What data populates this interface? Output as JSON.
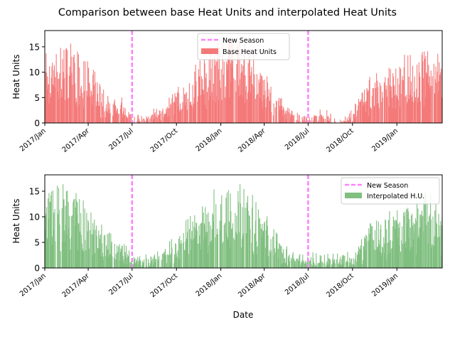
{
  "figure": {
    "title": "Comparison between base Heat Units and interpolated Heat Units",
    "xlabel": "Date"
  },
  "legend_labels": {
    "season": "New Season",
    "base": "Base Heat Units",
    "interp": "Interpolated H.U."
  },
  "colors": {
    "base": "#f47a7a",
    "interp": "#80bf80",
    "season": "#ff80ff"
  },
  "chart_data": [
    {
      "type": "bar",
      "title": "",
      "xlabel": "",
      "ylabel": "Heat Units",
      "ylim": [
        0,
        18.2
      ],
      "y_ticks": [
        0,
        5,
        10,
        15
      ],
      "x_range": [
        "2017-01-01",
        "2019-04-05"
      ],
      "x_ticks": [
        "2017/Jan",
        "2017/Apr",
        "2017/Jul",
        "2017/Oct",
        "2018/Jan",
        "2018/Apr",
        "2018/Jul",
        "2018/Oct",
        "2019/Jan"
      ],
      "season_markers": [
        "2017-07-01",
        "2018-07-01"
      ],
      "legend_position": "upper center",
      "series": [
        {
          "name": "Base Heat Units",
          "profile_dates": [
            "2017-01-01",
            "2017-02-01",
            "2017-03-01",
            "2017-04-01",
            "2017-05-01",
            "2017-05-20",
            "2017-06-10",
            "2017-07-01",
            "2017-08-01",
            "2017-09-01",
            "2017-10-01",
            "2017-11-01",
            "2017-12-01",
            "2018-01-01",
            "2018-02-01",
            "2018-03-01",
            "2018-04-01",
            "2018-05-01",
            "2018-06-01",
            "2018-07-01",
            "2018-08-01",
            "2018-09-01",
            "2018-10-01",
            "2018-11-01",
            "2018-12-01",
            "2019-01-01",
            "2019-02-01",
            "2019-03-01",
            "2019-04-05"
          ],
          "profile_values": [
            10,
            11,
            10,
            8,
            5,
            4,
            3,
            0.5,
            1,
            2,
            4,
            7,
            9,
            11,
            12,
            10,
            7,
            4,
            1.5,
            0.3,
            1.5,
            0,
            1.5,
            6,
            7,
            8,
            9,
            10,
            8
          ]
        }
      ]
    },
    {
      "type": "bar",
      "title": "",
      "xlabel": "Date",
      "ylabel": "Heat Units",
      "ylim": [
        0,
        18.2
      ],
      "y_ticks": [
        0,
        5,
        10,
        15
      ],
      "x_range": [
        "2017-01-01",
        "2019-04-05"
      ],
      "x_ticks": [
        "2017/Jan",
        "2017/Apr",
        "2017/Jul",
        "2017/Oct",
        "2018/Jan",
        "2018/Apr",
        "2018/Jul",
        "2018/Oct",
        "2019/Jan"
      ],
      "season_markers": [
        "2017-07-01",
        "2018-07-01"
      ],
      "legend_position": "upper right",
      "series": [
        {
          "name": "Interpolated H.U.",
          "profile_dates": [
            "2017-01-01",
            "2017-02-01",
            "2017-03-01",
            "2017-04-01",
            "2017-05-01",
            "2017-05-20",
            "2017-06-10",
            "2017-06-20",
            "2017-07-01",
            "2017-08-01",
            "2017-09-01",
            "2017-10-01",
            "2017-11-01",
            "2017-12-01",
            "2018-01-01",
            "2018-02-01",
            "2018-03-01",
            "2018-04-01",
            "2018-05-01",
            "2018-06-01",
            "2018-07-01",
            "2018-08-01",
            "2018-09-01",
            "2018-10-01",
            "2018-11-01",
            "2018-12-01",
            "2019-01-01",
            "2019-02-01",
            "2019-03-01",
            "2019-04-05"
          ],
          "profile_values": [
            10,
            11,
            10,
            8,
            5,
            4,
            3,
            2.8,
            1.5,
            1.2,
            2,
            4,
            7,
            9,
            11,
            12,
            10,
            7,
            4,
            1.5,
            1.4,
            1.5,
            1.8,
            1.5,
            6,
            7,
            8,
            9,
            10,
            8
          ]
        }
      ]
    }
  ]
}
